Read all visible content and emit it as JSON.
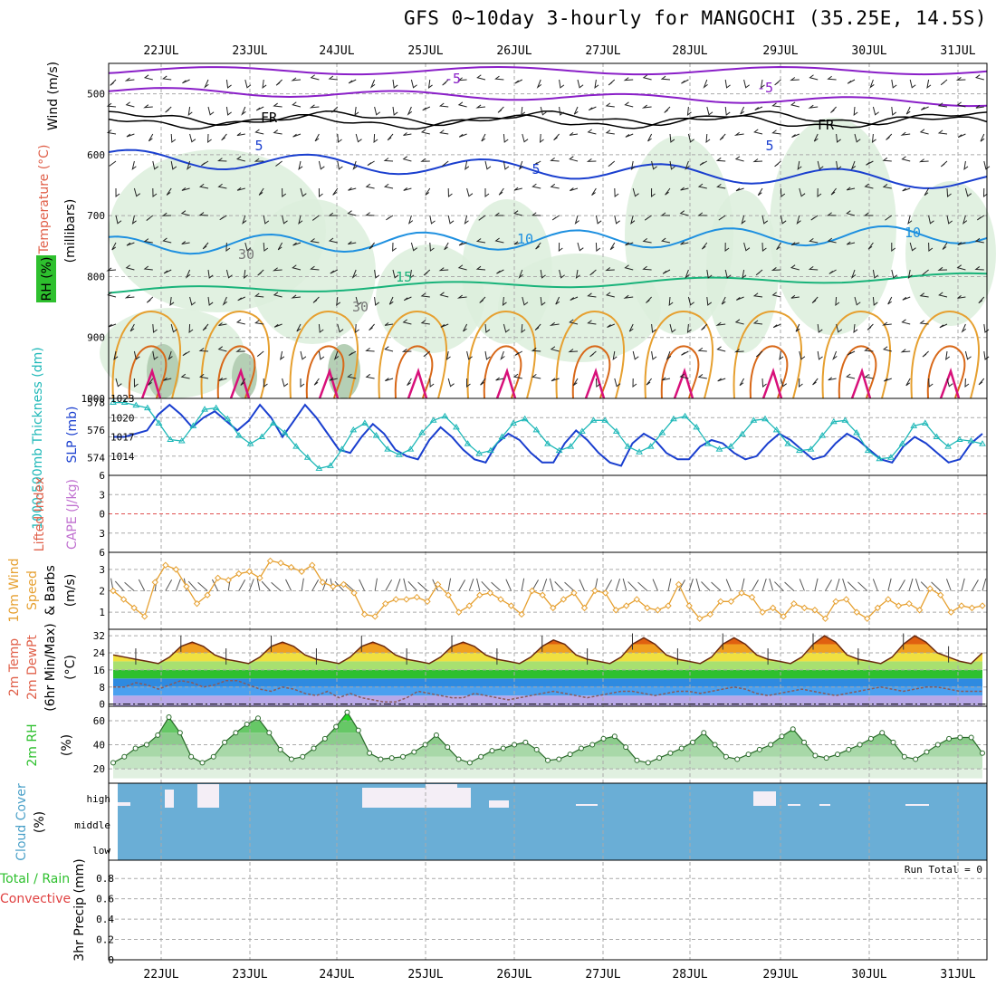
{
  "title": "GFS 0~10day 3-hourly for MANGOCHI (35.25E, 14.5S)",
  "dates": [
    "22JUL",
    "23JUL",
    "24JUL",
    "25JUL",
    "26JUL",
    "27JUL",
    "28JUL",
    "29JUL",
    "30JUL",
    "31JUL"
  ],
  "colors": {
    "purple": "#8a1fc8",
    "black": "#000000",
    "blue": "#1a3fcf",
    "lightblue": "#1e90e0",
    "green": "#19b37a",
    "orange": "#e6a030",
    "darkorange": "#d86818",
    "magenta": "#d8107a",
    "rh_fill": "#dcefdc",
    "slp": "#1a3fcf",
    "thick": "#1fb8b8",
    "wind": "#e6a030",
    "cloud": "#6aaed6",
    "grid": "#aaaaaa"
  },
  "panels": {
    "upper_air": {
      "label_wind": "Wind (m/s)",
      "label_temp": "Temperature (°C)",
      "label_rh": "RH (%)",
      "label_mb": "(millibars)",
      "yticks": [
        "500",
        "600",
        "700",
        "800",
        "900",
        "1000"
      ],
      "contour_labels": [
        "-5",
        "-5",
        "FR",
        "FR",
        "5",
        "5",
        "5",
        "10",
        "10",
        "15",
        "30",
        "30"
      ]
    },
    "slp": {
      "label_thick": "1000-500mb Thickness (dm)",
      "label_slp": "SLP (mb)",
      "left_ticks": [
        "578",
        "576",
        "574"
      ],
      "right_ticks": [
        "1023",
        "1020",
        "1017",
        "1014"
      ]
    },
    "stability": {
      "label_li": "Lifted Index",
      "label_cape": "CAPE (J/kg)",
      "ticks": [
        "6",
        "3",
        "0",
        "3",
        "6"
      ]
    },
    "wind10m": {
      "label_a": "10m Wind",
      "label_b": "Speed",
      "label_c": "& Barbs",
      "unit": "(m/s)",
      "ticks": [
        "3",
        "2",
        "1"
      ]
    },
    "temp2m": {
      "label_a": "2m Temp",
      "label_b": "2m DewPt",
      "label_c": "(6hr Min/Max)",
      "unit": "(°C)",
      "ticks": [
        "32",
        "24",
        "16",
        "8",
        "0"
      ]
    },
    "rh2m": {
      "label": "2m RH",
      "unit": "(%)",
      "ticks": [
        "60",
        "40",
        "20"
      ]
    },
    "cloud": {
      "label_a": "Cloud Cover",
      "label_b": "(%)",
      "levels": [
        "high",
        "middle",
        "low"
      ]
    },
    "precip": {
      "label_a": "Total / Rain",
      "label_b": "Convective",
      "label_c": "3hr Precip (mm)",
      "run_total": "Run Total = 0",
      "ticks": [
        "0.8",
        "0.6",
        "0.4",
        "0.2",
        "0"
      ]
    }
  },
  "chart_data": [
    {
      "type": "line",
      "name": "slp_thickness",
      "series": [
        {
          "name": "SLP (mb)",
          "values": [
            1017,
            1017,
            1017.5,
            1018,
            1020.5,
            1022,
            1020.5,
            1018.5,
            1020,
            1021,
            1019.5,
            1018,
            1019.5,
            1022,
            1020,
            1017,
            1019.5,
            1022,
            1020,
            1017.5,
            1015,
            1014.5,
            1017,
            1019,
            1017.5,
            1015,
            1014,
            1013.5,
            1016.5,
            1018.5,
            1017,
            1015,
            1013.5,
            1013,
            1016,
            1017.5,
            1016.5,
            1014.5,
            1013,
            1013,
            1016,
            1018,
            1016.5,
            1014.5,
            1013,
            1012.5,
            1016,
            1017.5,
            1016.5,
            1014.5,
            1013.5,
            1013.5,
            1015.5,
            1016.5,
            1016,
            1014.5,
            1013.5,
            1014,
            1016,
            1017.5,
            1016.5,
            1015,
            1013.5,
            1014,
            1016,
            1017.5,
            1016.5,
            1015,
            1013.5,
            1013,
            1015.5,
            1017,
            1016,
            1014.5,
            1013,
            1013.5,
            1016,
            1017.5
          ]
        },
        {
          "name": "1000-500mb Thickness (dm)",
          "values": [
            578,
            578,
            577.8,
            577.6,
            576.5,
            575.3,
            575.2,
            576.3,
            577.5,
            577.6,
            576.8,
            575.6,
            575,
            575.5,
            576.5,
            575.8,
            574.8,
            574,
            573.2,
            573.4,
            574.6,
            576,
            576.5,
            575.6,
            574.6,
            574.2,
            574.6,
            575.8,
            576.7,
            577,
            576.2,
            575,
            574.3,
            574.5,
            575.5,
            576.5,
            576.8,
            576,
            575,
            574.5,
            574.8,
            575.9,
            576.7,
            576.7,
            575.9,
            574.8,
            574.4,
            574.8,
            575.8,
            576.8,
            577,
            576.2,
            575,
            574.6,
            574.8,
            575.7,
            576.7,
            576.8,
            576,
            575,
            574.5,
            574.6,
            575.6,
            576.6,
            576.7,
            575.8,
            574.5,
            573.9,
            574,
            575,
            576.3,
            576.5,
            575.5,
            574.8,
            575.3,
            575.2,
            575
          ]
        }
      ],
      "ylim_slp": [
        1011,
        1023
      ],
      "ylim_thick": [
        572.7,
        578.3
      ]
    },
    {
      "type": "line",
      "name": "wind10m",
      "series": [
        {
          "name": "10m Wind Speed (m/s)",
          "values": [
            2.0,
            1.6,
            1.2,
            0.8,
            2.4,
            3.2,
            3.0,
            2.2,
            1.4,
            1.8,
            2.6,
            2.5,
            2.8,
            2.9,
            2.6,
            3.4,
            3.3,
            3.1,
            2.9,
            3.2,
            2.4,
            2.2,
            2.3,
            1.9,
            0.9,
            0.8,
            1.4,
            1.6,
            1.6,
            1.7,
            1.5,
            2.3,
            1.8,
            1.0,
            1.3,
            1.8,
            1.9,
            1.6,
            1.3,
            0.9,
            2.0,
            1.8,
            1.2,
            1.6,
            1.9,
            1.2,
            2.0,
            1.9,
            1.1,
            1.3,
            1.6,
            1.2,
            1.1,
            1.3,
            2.3,
            1.3,
            0.7,
            0.9,
            1.5,
            1.5,
            1.9,
            1.7,
            1.0,
            1.2,
            0.8,
            1.4,
            1.2,
            1.1,
            0.7,
            1.5,
            1.6,
            1.0,
            0.7,
            1.2,
            1.6,
            1.3,
            1.4,
            1.1,
            2.1,
            1.8,
            1.0,
            1.3,
            1.2,
            1.3
          ]
        }
      ],
      "ylim": [
        0.2,
        3.8
      ]
    },
    {
      "type": "area",
      "name": "temp2m",
      "series": [
        {
          "name": "2m Temp (°C)",
          "values": [
            23,
            22,
            21,
            20,
            19,
            22,
            27,
            29,
            27,
            23,
            21,
            20,
            19,
            22,
            27,
            29,
            27,
            23,
            21,
            20,
            19,
            22,
            27,
            29,
            27,
            23,
            21,
            20,
            19,
            22,
            27,
            29,
            27,
            23,
            21,
            20,
            19,
            22,
            27,
            30,
            28,
            23,
            21,
            20,
            19,
            22,
            28,
            31,
            28,
            23,
            21,
            20,
            19,
            22,
            28,
            31,
            28,
            23,
            21,
            20,
            19,
            22,
            28,
            32,
            29,
            23,
            21,
            20,
            19,
            22,
            28,
            32,
            29,
            24,
            22,
            20,
            19,
            24
          ]
        },
        {
          "name": "2m DewPt (°C)",
          "values": [
            8,
            8,
            10,
            9,
            7,
            9,
            11,
            10,
            8,
            9,
            11,
            11,
            9,
            7,
            6,
            8,
            7,
            5,
            4,
            6,
            3,
            5,
            3,
            2,
            1,
            1,
            3,
            6,
            5,
            4,
            3,
            3,
            5,
            4,
            3,
            2,
            3,
            4,
            5,
            6,
            5,
            4,
            3,
            4,
            5,
            6,
            6,
            5,
            4,
            5,
            6,
            6,
            5,
            6,
            7,
            8,
            7,
            5,
            4,
            5,
            6,
            7,
            6,
            5,
            4,
            5,
            6,
            7,
            8,
            7,
            6,
            7,
            8,
            8,
            7,
            6,
            6,
            6
          ]
        }
      ],
      "ylim": [
        -1,
        35
      ]
    },
    {
      "type": "area",
      "name": "rh2m",
      "series": [
        {
          "name": "2m RH (%)",
          "values": [
            25,
            30,
            37,
            40,
            48,
            63,
            50,
            30,
            25,
            30,
            42,
            50,
            57,
            62,
            50,
            36,
            28,
            30,
            37,
            45,
            55,
            67,
            52,
            33,
            28,
            29,
            30,
            34,
            40,
            48,
            38,
            28,
            25,
            30,
            35,
            37,
            40,
            42,
            36,
            27,
            28,
            32,
            37,
            40,
            45,
            47,
            38,
            27,
            25,
            29,
            33,
            37,
            42,
            50,
            40,
            30,
            28,
            32,
            36,
            40,
            47,
            53,
            42,
            31,
            29,
            32,
            36,
            40,
            45,
            50,
            42,
            30,
            28,
            34,
            40,
            45,
            46,
            46,
            33
          ]
        }
      ],
      "ylim": [
        8,
        72
      ]
    }
  ]
}
